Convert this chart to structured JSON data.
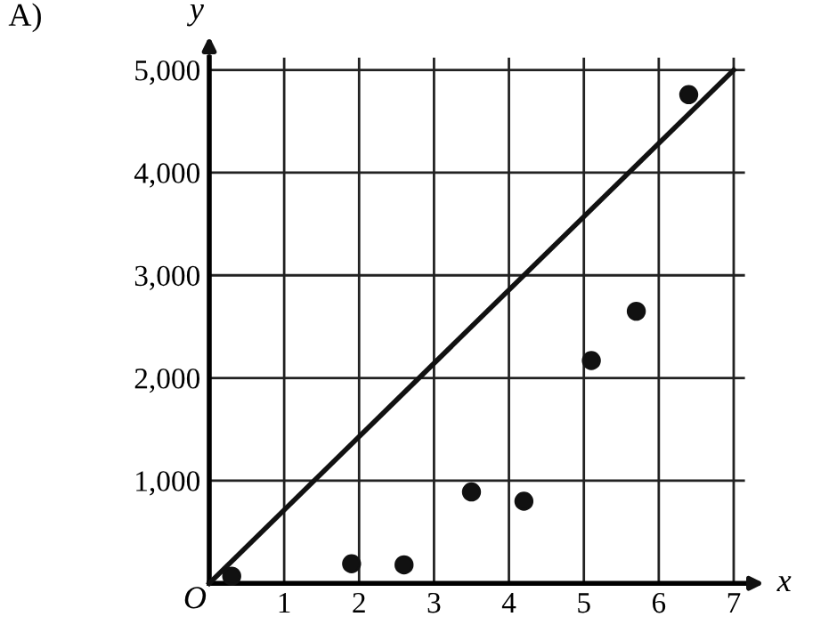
{
  "chart_data": {
    "type": "scatter",
    "xlabel": "x",
    "ylabel": "y",
    "annotations": [
      "A)",
      "O"
    ],
    "series": [
      {
        "color": "#111111",
        "marker": "circle",
        "x": [
          0.3,
          1.9,
          2.6,
          3.5,
          4.2,
          5.1,
          5.7,
          6.4
        ],
        "values": [
          70,
          190,
          180,
          890,
          800,
          2170,
          2650,
          4760
        ]
      },
      {
        "type": "line",
        "color": "#111111",
        "line_style": "solid",
        "x": [
          0,
          7
        ],
        "values": [
          0,
          5000
        ]
      }
    ],
    "xlim": [
      0,
      7.15
    ],
    "ylim": [
      0,
      5120
    ],
    "xticks": [
      1,
      2,
      3,
      4,
      5,
      6,
      7
    ],
    "yticks": [
      {
        "value": 1000,
        "label": "1,000"
      },
      {
        "value": 2000,
        "label": "2,000"
      },
      {
        "value": 3000,
        "label": "3,000"
      },
      {
        "value": 4000,
        "label": "4,000"
      },
      {
        "value": 5000,
        "label": "5,000"
      }
    ],
    "grid": true
  }
}
